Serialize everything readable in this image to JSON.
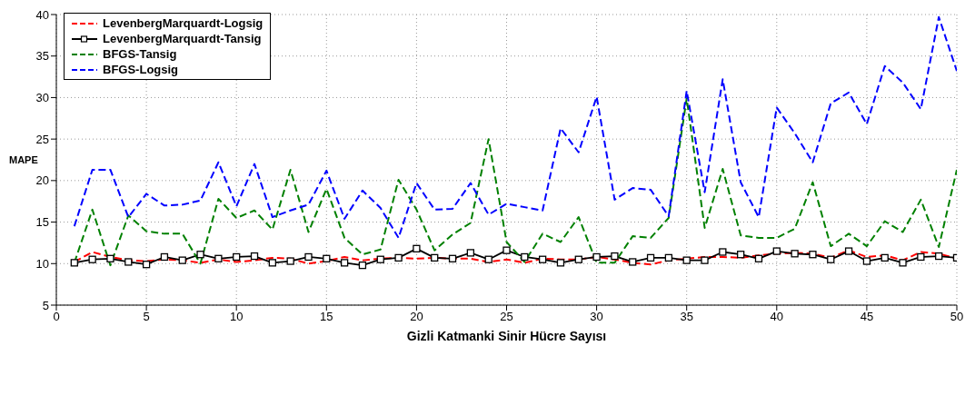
{
  "chart_data": {
    "type": "line",
    "xlabel": "Gizli Katmanki Sinir Hücre Sayısı",
    "ylabel": "MAPE",
    "x": [
      1,
      2,
      3,
      4,
      5,
      6,
      7,
      8,
      9,
      10,
      11,
      12,
      13,
      14,
      15,
      16,
      17,
      18,
      19,
      20,
      21,
      22,
      23,
      24,
      25,
      26,
      27,
      28,
      29,
      30,
      31,
      32,
      33,
      34,
      35,
      36,
      37,
      38,
      39,
      40,
      41,
      42,
      43,
      44,
      45,
      46,
      47,
      48,
      49,
      50
    ],
    "xlim": [
      0,
      50
    ],
    "xticks": [
      0,
      5,
      10,
      15,
      20,
      25,
      30,
      35,
      40,
      45,
      50
    ],
    "ylim": [
      5,
      40
    ],
    "yticks": [
      5,
      10,
      15,
      20,
      25,
      30,
      35,
      40
    ],
    "grid": true,
    "legend": "top left",
    "series": [
      {
        "name": "LevenbergMarquardt-Logsig",
        "color": "#ff0000",
        "line_style": "dashed",
        "marker": "none",
        "values": [
          10.2,
          11.4,
          10.8,
          10.4,
          10.3,
          10.5,
          10.4,
          10.1,
          10.5,
          10.2,
          10.4,
          10.7,
          10.6,
          10,
          10.3,
          10.8,
          10.4,
          10.6,
          10.7,
          10.6,
          10.7,
          10.6,
          10.6,
          10.2,
          10.5,
          10.1,
          10.6,
          10.5,
          10.5,
          10.8,
          10.5,
          10.1,
          9.9,
          10.4,
          10.6,
          10.8,
          10.8,
          10.7,
          11,
          11.2,
          11.3,
          11.2,
          10.7,
          11.6,
          10.8,
          11,
          10.4,
          11.4,
          11.2,
          10.6
        ]
      },
      {
        "name": "LevenbergMarquardt-Tansig",
        "color": "#000000",
        "line_style": "solid",
        "marker": "square",
        "values": [
          10.1,
          10.5,
          10.6,
          10.2,
          9.9,
          10.8,
          10.4,
          11.1,
          10.6,
          10.8,
          10.9,
          10.1,
          10.3,
          10.8,
          10.6,
          10.1,
          9.8,
          10.5,
          10.7,
          11.8,
          10.7,
          10.6,
          11.3,
          10.5,
          11.6,
          10.8,
          10.5,
          10.1,
          10.5,
          10.8,
          10.9,
          10.2,
          10.7,
          10.7,
          10.4,
          10.4,
          11.4,
          11.1,
          10.6,
          11.5,
          11.2,
          11.1,
          10.5,
          11.5,
          10.3,
          10.7,
          10.1,
          10.8,
          10.9,
          10.7
        ]
      },
      {
        "name": "BFGS-Tansig",
        "color": "#008000",
        "line_style": "dashed",
        "marker": "none",
        "values": [
          10.1,
          16.5,
          9.8,
          15.8,
          13.9,
          13.6,
          13.6,
          10,
          17.8,
          15.5,
          16.4,
          14.1,
          21.3,
          13.8,
          19,
          13.1,
          11.1,
          11.7,
          20.1,
          16.5,
          11.6,
          13.5,
          14.9,
          25,
          12.6,
          10.2,
          13.6,
          12.6,
          15.6,
          10.1,
          10.1,
          13.3,
          13.1,
          15.5,
          29.9,
          14.3,
          21.4,
          13.4,
          13.1,
          13.1,
          14.2,
          19.8,
          12.1,
          13.6,
          12.1,
          15.1,
          13.8,
          17.7,
          12,
          21.3
        ]
      },
      {
        "name": "BFGS-Logsig",
        "color": "#0000ff",
        "line_style": "dashed",
        "marker": "none",
        "values": [
          14.5,
          21.3,
          21.3,
          15.6,
          18.4,
          17,
          17.1,
          17.6,
          22.2,
          16.9,
          22,
          15.6,
          16.4,
          17.1,
          21.2,
          15.4,
          18.8,
          16.7,
          13.1,
          19.7,
          16.5,
          16.6,
          19.7,
          15.9,
          17.2,
          16.8,
          16.4,
          26.3,
          23.4,
          30.1,
          17.7,
          19.1,
          18.9,
          15.7,
          30.8,
          18.6,
          32.2,
          19.8,
          15.6,
          28.8,
          25.7,
          22.2,
          29.3,
          30.6,
          26.8,
          33.8,
          31.8,
          28.6,
          39.7,
          33.2
        ]
      }
    ]
  }
}
